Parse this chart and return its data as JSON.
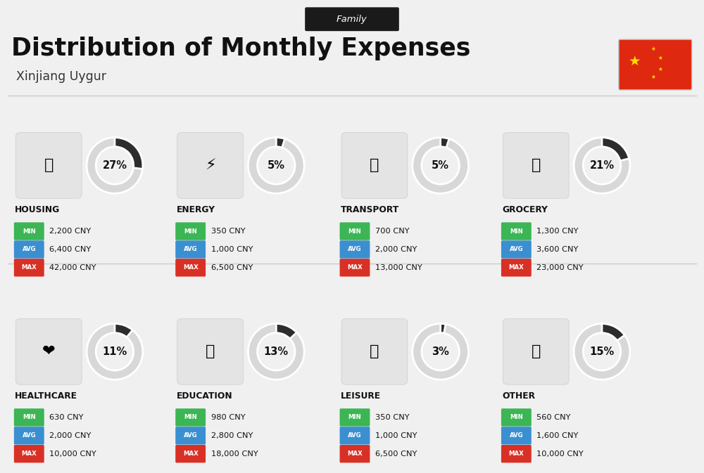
{
  "title": "Distribution of Monthly Expenses",
  "subtitle": "Xinjiang Uygur",
  "family_label": "Family",
  "bg_color": "#f0f0f0",
  "header_bg": "#1a1a1a",
  "categories": [
    {
      "name": "HOUSING",
      "pct": 27,
      "min": "2,200 CNY",
      "avg": "6,400 CNY",
      "max": "42,000 CNY",
      "row": 0,
      "col": 0
    },
    {
      "name": "ENERGY",
      "pct": 5,
      "min": "350 CNY",
      "avg": "1,000 CNY",
      "max": "6,500 CNY",
      "row": 0,
      "col": 1
    },
    {
      "name": "TRANSPORT",
      "pct": 5,
      "min": "700 CNY",
      "avg": "2,000 CNY",
      "max": "13,000 CNY",
      "row": 0,
      "col": 2
    },
    {
      "name": "GROCERY",
      "pct": 21,
      "min": "1,300 CNY",
      "avg": "3,600 CNY",
      "max": "23,000 CNY",
      "row": 0,
      "col": 3
    },
    {
      "name": "HEALTHCARE",
      "pct": 11,
      "min": "630 CNY",
      "avg": "2,000 CNY",
      "max": "10,000 CNY",
      "row": 1,
      "col": 0
    },
    {
      "name": "EDUCATION",
      "pct": 13,
      "min": "980 CNY",
      "avg": "2,800 CNY",
      "max": "18,000 CNY",
      "row": 1,
      "col": 1
    },
    {
      "name": "LEISURE",
      "pct": 3,
      "min": "350 CNY",
      "avg": "1,000 CNY",
      "max": "6,500 CNY",
      "row": 1,
      "col": 2
    },
    {
      "name": "OTHER",
      "pct": 15,
      "min": "560 CNY",
      "avg": "1,600 CNY",
      "max": "10,000 CNY",
      "row": 1,
      "col": 3
    }
  ],
  "min_color": "#3cb554",
  "avg_color": "#3a8fd1",
  "max_color": "#d93025",
  "donut_active": "#2d2d2d",
  "donut_inactive": "#d8d8d8",
  "flag_red": "#DE2910",
  "flag_yellow": "#FFDE00"
}
